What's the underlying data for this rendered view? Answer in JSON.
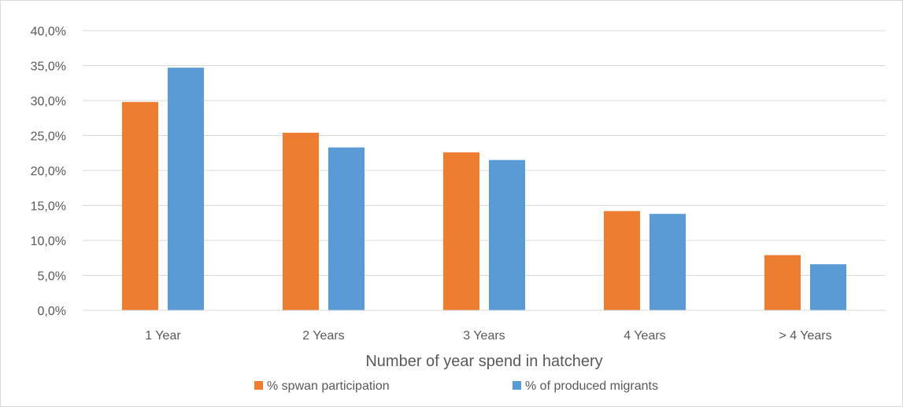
{
  "chart_data": {
    "type": "bar",
    "title": "",
    "xlabel": "Number of year spend in hatchery",
    "ylabel": "",
    "categories": [
      "1 Year",
      "2 Years",
      "3 Years",
      "4 Years",
      "> 4 Years"
    ],
    "series": [
      {
        "name": "% spwan participation",
        "color": "#ed7d31",
        "values": [
          29.8,
          25.4,
          22.6,
          14.2,
          7.9
        ]
      },
      {
        "name": "% of produced migrants",
        "color": "#5b9bd5",
        "values": [
          34.7,
          23.3,
          21.5,
          13.8,
          6.6
        ]
      }
    ],
    "ylim": [
      0,
      40
    ],
    "yticks": [
      0,
      5,
      10,
      15,
      20,
      25,
      30,
      35,
      40
    ],
    "ytick_labels": [
      "0,0%",
      "5,0%",
      "10,0%",
      "15,0%",
      "20,0%",
      "25,0%",
      "30,0%",
      "35,0%",
      "40,0%"
    ],
    "grid": true,
    "gridline_color": "#d9d9d9",
    "legend": "bottom"
  }
}
